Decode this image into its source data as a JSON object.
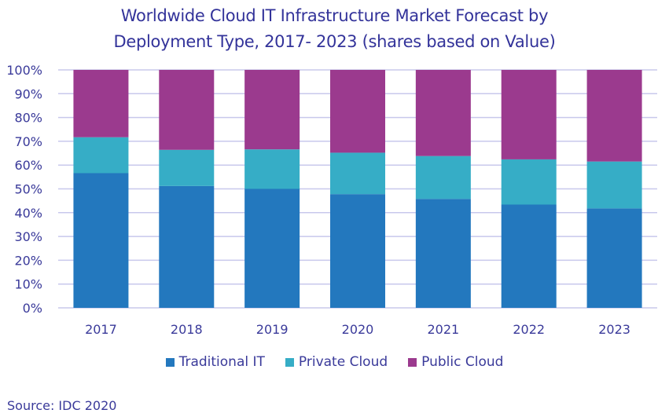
{
  "chart_data": {
    "type": "bar",
    "stacked": true,
    "title": "Worldwide Cloud IT Infrastructure Market Forecast by Deployment Type, 2017- 2023 (shares based on Value)",
    "title_lines": [
      "Worldwide Cloud IT Infrastructure Market Forecast by",
      "Deployment Type, 2017- 2023 (shares based on Value)"
    ],
    "xlabel": "",
    "ylabel": "",
    "categories": [
      "2017",
      "2018",
      "2019",
      "2020",
      "2021",
      "2022",
      "2023"
    ],
    "series": [
      {
        "name": "Traditional IT",
        "color": "#2378be",
        "values": [
          56.6,
          51.2,
          50.0,
          47.8,
          45.8,
          43.4,
          41.8
        ]
      },
      {
        "name": "Private Cloud",
        "color": "#36adc6",
        "values": [
          15.1,
          15.2,
          16.6,
          17.4,
          18.0,
          19.0,
          19.7
        ]
      },
      {
        "name": "Public Cloud",
        "color": "#9b3a8e",
        "values": [
          28.3,
          33.6,
          33.4,
          34.8,
          36.2,
          37.6,
          38.5
        ]
      }
    ],
    "ylim": [
      0,
      100
    ],
    "yticks": [
      "0%",
      "10%",
      "20%",
      "30%",
      "40%",
      "50%",
      "60%",
      "70%",
      "80%",
      "90%",
      "100%"
    ],
    "grid": true,
    "legend_position": "bottom-center"
  },
  "footer": {
    "source": "Source: IDC 2020"
  },
  "colors": {
    "text": "#3a3a9a",
    "gridline": "#c8c8ec"
  }
}
